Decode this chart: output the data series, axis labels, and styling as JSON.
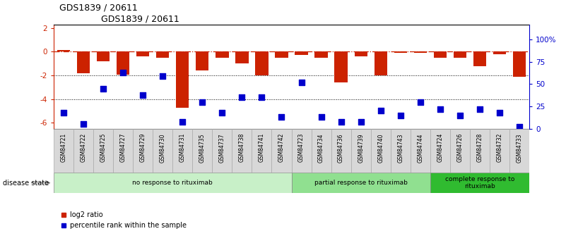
{
  "title": "GDS1839 / 20611",
  "samples": [
    "GSM84721",
    "GSM84722",
    "GSM84725",
    "GSM84727",
    "GSM84729",
    "GSM84730",
    "GSM84731",
    "GSM84735",
    "GSM84737",
    "GSM84738",
    "GSM84741",
    "GSM84742",
    "GSM84723",
    "GSM84734",
    "GSM84736",
    "GSM84739",
    "GSM84740",
    "GSM84743",
    "GSM84744",
    "GSM84724",
    "GSM84726",
    "GSM84728",
    "GSM84732",
    "GSM84733"
  ],
  "log2_ratio": [
    0.15,
    -1.8,
    -0.8,
    -1.95,
    -0.4,
    -0.5,
    -4.7,
    -1.6,
    -0.5,
    -1.0,
    -2.0,
    -0.5,
    -0.3,
    -0.5,
    -2.6,
    -0.4,
    -2.0,
    -0.1,
    -0.1,
    -0.5,
    -0.5,
    -1.2,
    -0.2,
    -2.1
  ],
  "percentile": [
    18,
    5,
    45,
    63,
    38,
    59,
    8,
    30,
    18,
    35,
    35,
    13,
    52,
    13,
    8,
    8,
    20,
    15,
    30,
    22,
    15,
    22,
    18,
    2
  ],
  "groups": [
    {
      "label": "no response to rituximab",
      "start": 0,
      "end": 12,
      "color": "#c8f0c8"
    },
    {
      "label": "partial response to rituximab",
      "start": 12,
      "end": 19,
      "color": "#90e090"
    },
    {
      "label": "complete response to\nrituximab",
      "start": 19,
      "end": 24,
      "color": "#30bb30"
    }
  ],
  "ylim_left": [
    -6.5,
    2.3
  ],
  "ylim_right": [
    0,
    116.7
  ],
  "yticks_left": [
    -6,
    -4,
    -2,
    0,
    2
  ],
  "yticks_right": [
    0,
    25,
    50,
    75,
    100
  ],
  "ytick_labels_right": [
    "0",
    "25",
    "50",
    "75",
    "100%"
  ],
  "bar_color": "#cc2200",
  "dot_color": "#0000cc",
  "hline_y": 0,
  "dotted_lines": [
    -2,
    -4
  ],
  "bar_width": 0.65,
  "dot_size": 28,
  "tick_label_box_color": "#d8d8d8",
  "tick_label_box_edge": "#aaaaaa"
}
